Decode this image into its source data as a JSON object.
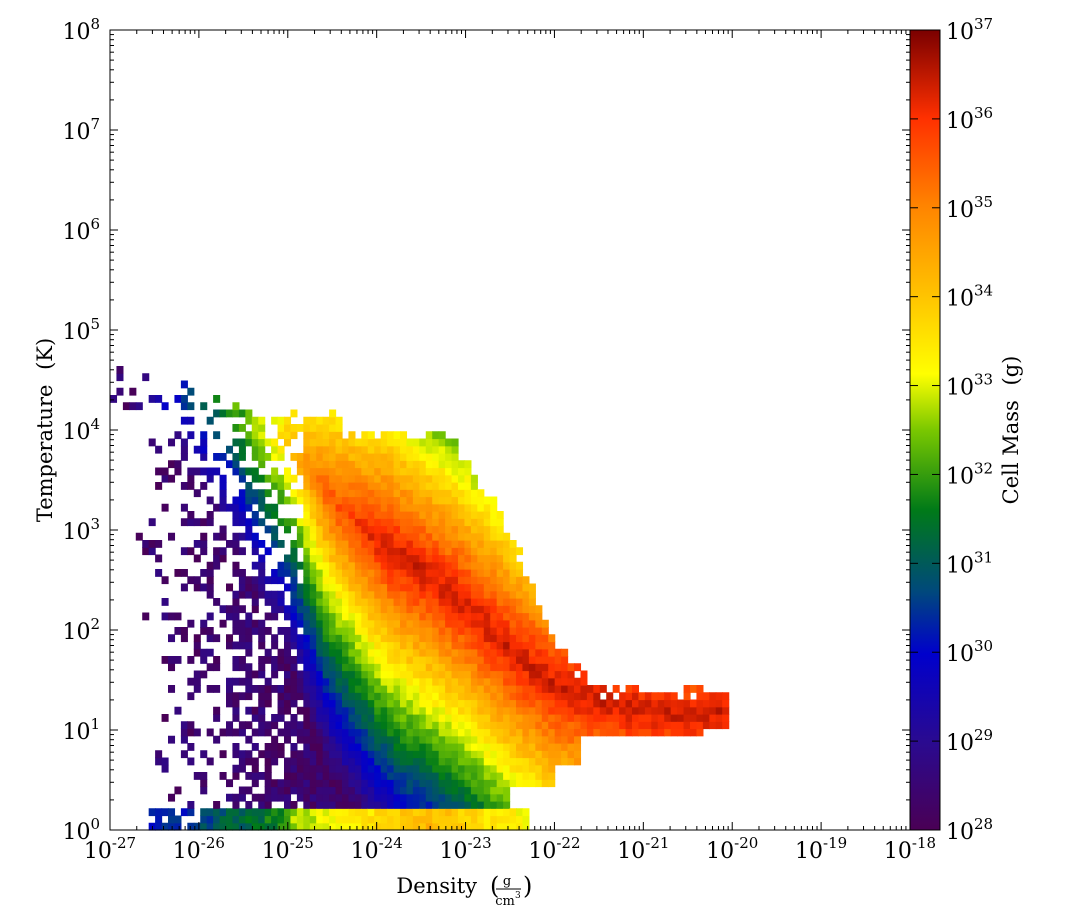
{
  "chart_data": {
    "type": "heatmap",
    "title": "",
    "xlabel": "Density",
    "xlabel_unit": {
      "numerator": "g",
      "denominator": "cm",
      "power": "3"
    },
    "ylabel": "Temperature",
    "ylabel_unit": "(K)",
    "colorbar_label": "Cell Mass",
    "colorbar_unit": "(g)",
    "xscale": "log",
    "yscale": "log",
    "cscale": "log",
    "xlim": [
      1e-27,
      1e-18
    ],
    "ylim": [
      1,
      100000000.0
    ],
    "clim": [
      1e+28,
      1e+37
    ],
    "grid": false,
    "colormap": "gist_rainbow-like (purple-blue-green-yellow-orange-red)",
    "x_ticks": [
      {
        "base": "10",
        "exp": "-27"
      },
      {
        "base": "10",
        "exp": "-26"
      },
      {
        "base": "10",
        "exp": "-25"
      },
      {
        "base": "10",
        "exp": "-24"
      },
      {
        "base": "10",
        "exp": "-23"
      },
      {
        "base": "10",
        "exp": "-22"
      },
      {
        "base": "10",
        "exp": "-21"
      },
      {
        "base": "10",
        "exp": "-20"
      },
      {
        "base": "10",
        "exp": "-19"
      },
      {
        "base": "10",
        "exp": "-18"
      }
    ],
    "y_ticks": [
      {
        "base": "10",
        "exp": "0"
      },
      {
        "base": "10",
        "exp": "1"
      },
      {
        "base": "10",
        "exp": "2"
      },
      {
        "base": "10",
        "exp": "3"
      },
      {
        "base": "10",
        "exp": "4"
      },
      {
        "base": "10",
        "exp": "5"
      },
      {
        "base": "10",
        "exp": "6"
      },
      {
        "base": "10",
        "exp": "7"
      },
      {
        "base": "10",
        "exp": "8"
      }
    ],
    "c_ticks": [
      {
        "base": "10",
        "exp": "28"
      },
      {
        "base": "10",
        "exp": "29"
      },
      {
        "base": "10",
        "exp": "30"
      },
      {
        "base": "10",
        "exp": "31"
      },
      {
        "base": "10",
        "exp": "32"
      },
      {
        "base": "10",
        "exp": "33"
      },
      {
        "base": "10",
        "exp": "34"
      },
      {
        "base": "10",
        "exp": "35"
      },
      {
        "base": "10",
        "exp": "36"
      },
      {
        "base": "10",
        "exp": "37"
      }
    ],
    "distribution": {
      "description_of_data": "log10 density vs log10 temperature, cell mass per bin",
      "ridge": [
        {
          "log_rho": -25.8,
          "log_T": 4.2
        },
        {
          "log_rho": -25.0,
          "log_T": 3.9
        },
        {
          "log_rho": -24.5,
          "log_T": 3.3
        },
        {
          "log_rho": -24.0,
          "log_T": 2.9
        },
        {
          "log_rho": -23.5,
          "log_T": 2.6
        },
        {
          "log_rho": -23.0,
          "log_T": 2.25
        },
        {
          "log_rho": -22.5,
          "log_T": 1.8
        },
        {
          "log_rho": -22.0,
          "log_T": 1.45
        },
        {
          "log_rho": -21.5,
          "log_T": 1.3
        },
        {
          "log_rho": -21.0,
          "log_T": 1.2
        },
        {
          "log_rho": -20.5,
          "log_T": 1.15
        },
        {
          "log_rho": -20.05,
          "log_T": 1.2
        }
      ],
      "peak_log_mass": 36.4,
      "low_T_band_log_T": 0.1
    }
  }
}
